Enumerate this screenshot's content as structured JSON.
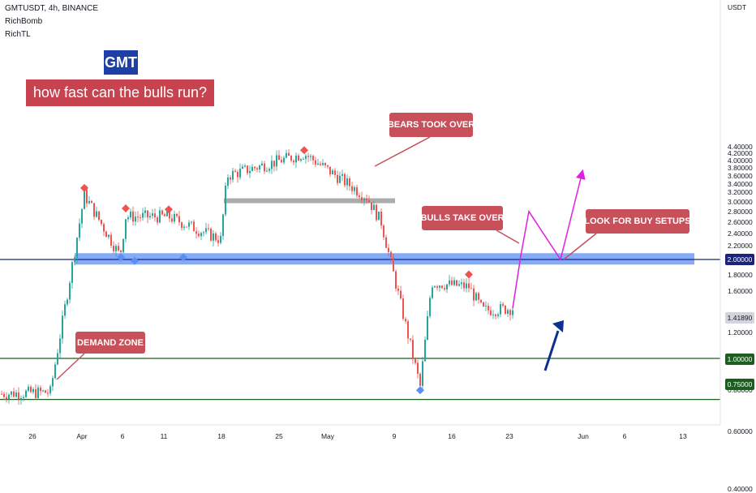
{
  "header": {
    "symbol_line": "GMTUSDT, 4h, BINANCE",
    "indicator1": "RichBomb",
    "indicator2": "RichTL"
  },
  "title_badge": "GMT",
  "subtitle_badge": "how fast can the bulls run?",
  "currency_label": "USDT",
  "callouts": {
    "bears": "BEARS TOOK OVER",
    "bulls": "BULLS TAKE OVER",
    "buy": "LOOK FOR BUY SETUPS",
    "demand": "DEMAND ZONE"
  },
  "price_tags": {
    "level_2": "2.00000",
    "current": "1.41890",
    "level_1": "1.00000",
    "level_075": "0.75000"
  },
  "colors": {
    "up": "#26a69a",
    "down": "#ef5350",
    "zone": "#5b8ff5",
    "gray_zone": "#9e9e9e",
    "callout": "#c7505a",
    "projection": "#e020e0",
    "arrow": "#0d2f8f",
    "level_blue": "#1a237e",
    "level_green": "#1b5e20"
  },
  "chart_data": {
    "type": "candlestick",
    "y_axis": {
      "scale": "log",
      "ticks": [
        "4.40000",
        "4.20000",
        "4.00000",
        "3.80000",
        "3.60000",
        "3.40000",
        "3.20000",
        "3.00000",
        "2.80000",
        "2.60000",
        "2.40000",
        "2.20000",
        "1.80000",
        "1.60000",
        "1.20000",
        "0.80000",
        "0.60000",
        "0.40000"
      ],
      "range": [
        0.37,
        4.55
      ]
    },
    "x_axis": {
      "ticks": [
        "26",
        "Apr",
        "6",
        "11",
        "18",
        "25",
        "May",
        "9",
        "16",
        "23",
        "Jun",
        "6",
        "13"
      ]
    },
    "horizontal_levels": [
      2.0,
      1.0,
      0.75
    ],
    "zones": {
      "demand_blue": [
        1.93,
        2.09
      ],
      "gray": [
        3.0,
        3.07
      ]
    },
    "key_points": [
      {
        "label": "Mar 21",
        "price": 0.78
      },
      {
        "label": "Mar 28",
        "price": 0.79
      },
      {
        "label": "Apr 1",
        "price": 3.15
      },
      {
        "label": "Apr 6",
        "price": 2.05
      },
      {
        "label": "Apr 7",
        "price": 2.7
      },
      {
        "label": "Apr 11",
        "price": 2.7
      },
      {
        "label": "Apr 18",
        "price": 2.3
      },
      {
        "label": "Apr 19",
        "price": 3.6
      },
      {
        "label": "Apr 27",
        "price": 4.2
      },
      {
        "label": "May 7",
        "price": 3.1
      },
      {
        "label": "May 9",
        "price": 2.6
      },
      {
        "label": "May 11",
        "price": 0.82
      },
      {
        "label": "May 13",
        "price": 1.7
      },
      {
        "label": "May 17",
        "price": 1.65
      },
      {
        "label": "May 19",
        "price": 1.4
      },
      {
        "label": "May 23",
        "price": 1.42
      }
    ],
    "projection": [
      1.42,
      2.05,
      2.8,
      2.0,
      3.7
    ],
    "current_price": 1.4189
  }
}
